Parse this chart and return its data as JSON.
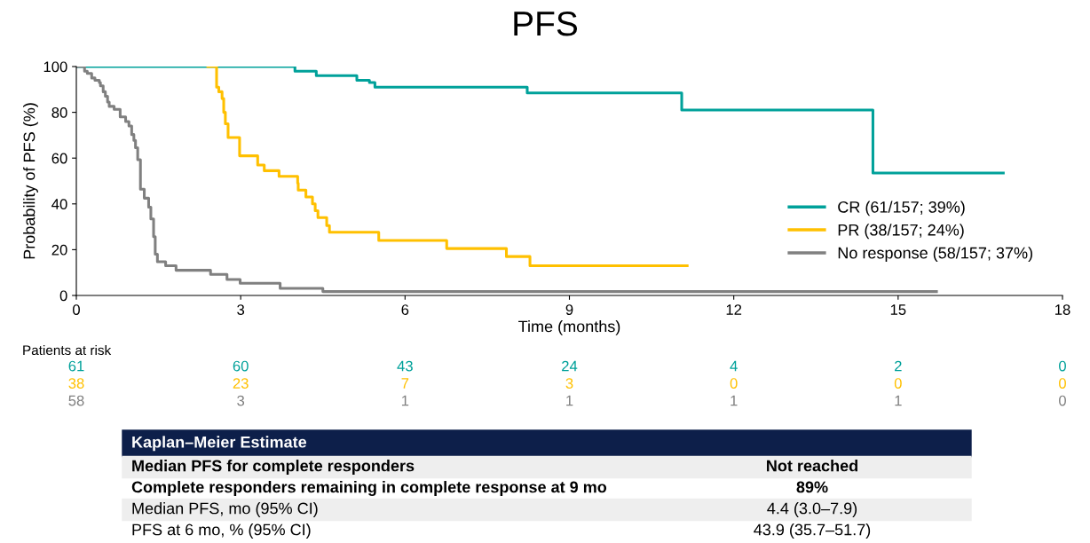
{
  "chart_data": {
    "type": "step",
    "title": "PFS",
    "xlabel": "Time (months)",
    "ylabel": "Probability of PFS (%)",
    "xlim": [
      0,
      18
    ],
    "xticks": [
      0,
      3,
      6,
      9,
      12,
      15,
      18
    ],
    "ylim": [
      0,
      100
    ],
    "yticks": [
      0,
      20,
      40,
      60,
      80,
      100
    ],
    "grid": false,
    "legend": "right",
    "series": [
      {
        "name": "CR (61/157; 39%)",
        "color": "#00a19a",
        "x": [
          0,
          3.99,
          4.38,
          5.12,
          5.35,
          5.45,
          8.23,
          11.05,
          14.54,
          16.92
        ],
        "values": [
          100,
          98,
          96,
          94,
          93,
          91,
          88.5,
          81,
          53.5,
          53.5
        ]
      },
      {
        "name": "PR (38/157; 24%)",
        "color": "#ffc000",
        "x": [
          2.4,
          2.56,
          2.6,
          2.66,
          2.69,
          2.72,
          2.77,
          2.98,
          3.31,
          3.43,
          3.7,
          4.04,
          4.05,
          4.19,
          4.31,
          4.36,
          4.41,
          4.57,
          4.62,
          5.52,
          6.76,
          7.85,
          8.28,
          11.15
        ],
        "values": [
          100,
          91,
          89,
          86,
          80,
          75,
          69,
          61,
          57,
          54.5,
          52,
          49,
          46,
          43,
          40,
          37,
          34,
          30.5,
          27.6,
          24,
          20.5,
          17,
          13,
          13
        ]
      },
      {
        "name": "No response (58/157; 37%)",
        "color": "#808080",
        "x": [
          0,
          0.15,
          0.2,
          0.28,
          0.34,
          0.42,
          0.44,
          0.49,
          0.53,
          0.57,
          0.6,
          0.69,
          0.8,
          0.9,
          0.96,
          1.01,
          1.05,
          1.08,
          1.12,
          1.17,
          1.24,
          1.32,
          1.36,
          1.41,
          1.44,
          1.48,
          1.63,
          1.82,
          2.45,
          2.75,
          2.99,
          3.72,
          4.5,
          15.7
        ],
        "values": [
          100,
          98,
          97,
          95,
          94,
          93,
          91.6,
          89,
          87,
          84.5,
          82.6,
          81.3,
          78,
          76,
          74,
          70.3,
          67.7,
          64.5,
          59.3,
          46.4,
          42.5,
          38.6,
          33.4,
          25.7,
          18,
          14.7,
          13,
          11,
          9.2,
          7,
          5.3,
          3.1,
          1.7,
          1.7
        ]
      }
    ],
    "annotations": [
      "Patients at risk",
      "61",
      "60",
      "43",
      "24",
      "4",
      "2",
      "0",
      "38",
      "23",
      "7",
      "3",
      "0",
      "0",
      "0",
      "58",
      "3",
      "1",
      "1",
      "1",
      "1",
      "0",
      "Kaplan–Meier Estimate",
      "Median PFS for complete responders",
      "Not reached",
      "Complete responders remaining in complete response at 9 mo",
      "89%",
      "Median PFS, mo (95% CI)",
      "4.4 (3.0–7.9)",
      "PFS at 6 mo, % (95% CI)",
      "43.9 (35.7–51.7)"
    ]
  }
}
